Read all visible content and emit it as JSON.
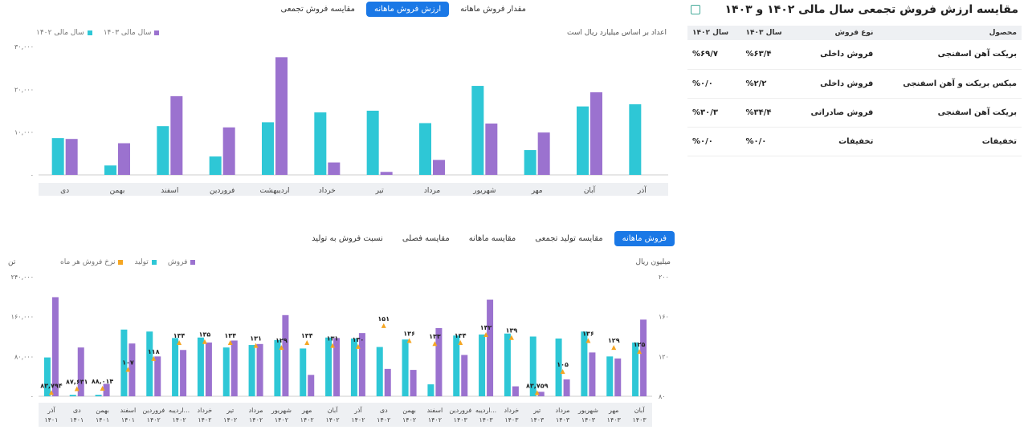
{
  "top": {
    "tabs": [
      {
        "label": "مقدار فروش ماهانه",
        "active": false
      },
      {
        "label": "ارزش فروش ماهانه",
        "active": true
      },
      {
        "label": "مقایسه فروش تجمعی",
        "active": false
      }
    ],
    "unit_note": "اعداد بر اساس میلیارد ریال است"
  },
  "bottom": {
    "tabs": [
      {
        "label": "فروش ماهانه",
        "active": true
      },
      {
        "label": "مقایسه تولید تجمعی",
        "active": false
      },
      {
        "label": "مقایسه ماهانه",
        "active": false
      },
      {
        "label": "مقایسه فصلی",
        "active": false
      },
      {
        "label": "نسبت فروش به تولید",
        "active": false
      }
    ],
    "left_unit": "تن",
    "right_unit": "میلیون ریال"
  },
  "panel": {
    "title": "مقایسه ارزش فروش تجمعی سال مالی ۱۴۰۲ و ۱۴۰۳",
    "headers": [
      "محصول",
      "نوع فروش",
      "سال ۱۴۰۳",
      "سال ۱۴۰۲"
    ],
    "rows": [
      {
        "product": "بریکت آهن اسفنجی",
        "type": "فروش داخلی",
        "y1403": "%۶۳/۴",
        "y1402": "%۶۹/۷"
      },
      {
        "product": "میکس بریکت و آهن اسفنجی",
        "type": "فروش داخلی",
        "y1403": "%۲/۲",
        "y1402": "%۰/۰"
      },
      {
        "product": "بریکت آهن اسفنجی",
        "type": "فروش صادراتی",
        "y1403": "%۳۴/۴",
        "y1402": "%۳۰/۳"
      },
      {
        "product": "تخفیفات",
        "type": "تخفیفات",
        "y1403": "%۰/۰",
        "y1402": "%۰/۰"
      }
    ]
  },
  "chart_data": [
    {
      "type": "bar",
      "categories": [
        "آذر",
        "آبان",
        "مهر",
        "شهریور",
        "مرداد",
        "تیر",
        "خرداد",
        "اردیبهشت",
        "فروردین",
        "اسفند",
        "بهمن",
        "دی"
      ],
      "series": [
        {
          "name": "سال مالی ۱۴۰۳",
          "color": "#9b72cf",
          "values": [
            null,
            19300,
            9900,
            12000,
            3500,
            700,
            2900,
            27500,
            11100,
            18400,
            7400,
            8400
          ]
        },
        {
          "name": "سال مالی ۱۴۰۲",
          "color": "#2ec7d6",
          "values": [
            16500,
            16000,
            5800,
            20800,
            12100,
            15000,
            14600,
            12300,
            4300,
            11400,
            2200,
            8600
          ]
        }
      ],
      "ylim": [
        0,
        30000
      ],
      "yticks": [
        "۳۰,۰۰۰",
        "۲۰,۰۰۰",
        "۱۰,۰۰۰",
        "۰"
      ],
      "ytick_values": [
        30000,
        20000,
        10000,
        0
      ],
      "legend_position": "top-left",
      "grid": false
    },
    {
      "type": "bar",
      "categories": [
        {
          "month": "آذر",
          "year": "۱۴۰۱"
        },
        {
          "month": "دی",
          "year": "۱۴۰۱"
        },
        {
          "month": "بهمن",
          "year": "۱۴۰۱"
        },
        {
          "month": "اسفند",
          "year": "۱۴۰۱"
        },
        {
          "month": "فروردین",
          "year": "۱۴۰۲"
        },
        {
          "month": "اردیبه...",
          "year": "۱۴۰۲"
        },
        {
          "month": "خرداد",
          "year": "۱۴۰۲"
        },
        {
          "month": "تیر",
          "year": "۱۴۰۲"
        },
        {
          "month": "مرداد",
          "year": "۱۴۰۲"
        },
        {
          "month": "شهریور",
          "year": "۱۴۰۲"
        },
        {
          "month": "مهر",
          "year": "۱۴۰۲"
        },
        {
          "month": "آبان",
          "year": "۱۴۰۲"
        },
        {
          "month": "آذر",
          "year": "۱۴۰۲"
        },
        {
          "month": "دی",
          "year": "۱۴۰۲"
        },
        {
          "month": "بهمن",
          "year": "۱۴۰۲"
        },
        {
          "month": "اسفند",
          "year": "۱۴۰۲"
        },
        {
          "month": "فروردین",
          "year": "۱۴۰۳"
        },
        {
          "month": "اردیبه...",
          "year": "۱۴۰۳"
        },
        {
          "month": "خرداد",
          "year": "۱۴۰۳"
        },
        {
          "month": "تیر",
          "year": "۱۴۰۳"
        },
        {
          "month": "مرداد",
          "year": "۱۴۰۳"
        },
        {
          "month": "شهریور",
          "year": "۱۴۰۳"
        },
        {
          "month": "مهر",
          "year": "۱۴۰۳"
        },
        {
          "month": "آبان",
          "year": "۱۴۰۳"
        }
      ],
      "series": [
        {
          "name": "فروش",
          "color": "#9b72cf",
          "axis": "left",
          "values": [
            199000,
            98000,
            25000,
            106000,
            80000,
            93000,
            108000,
            112000,
            105000,
            163000,
            43000,
            117000,
            127000,
            55000,
            53000,
            137000,
            83000,
            194000,
            20000,
            9000,
            34000,
            88000,
            76000,
            154000
          ]
        },
        {
          "name": "تولید",
          "color": "#2ec7d6",
          "axis": "left",
          "values": [
            78000,
            3000,
            3000,
            134000,
            130000,
            117000,
            118000,
            98000,
            103000,
            113000,
            96000,
            118000,
            116000,
            99000,
            114000,
            24000,
            122000,
            124000,
            126000,
            120000,
            116000,
            130000,
            80000,
            108000
          ]
        },
        {
          "name": "نرخ فروش هر ماه",
          "color": "#f5a623",
          "axis": "right",
          "values": [
            83.794,
            87.631,
            88.014,
            107,
            118,
            134,
            135,
            134,
            131,
            129,
            134,
            131,
            130,
            151,
            136,
            133,
            134,
            142,
            139,
            83.759,
            105,
            136,
            129,
            125
          ]
        }
      ],
      "rate_labels": [
        "۸۳,۷۹۴",
        "۸۷,۶۳۱",
        "۸۸,۰۱۴",
        "۱۰۷",
        "۱۱۸",
        "۱۳۴",
        "۱۳۵",
        "۱۳۴",
        "۱۳۱",
        "۱۲۹",
        "۱۳۴",
        "۱۳۱",
        "۱۳۰",
        "۱۵۱",
        "۱۳۶",
        "۱۳۳",
        "۱۳۴",
        "۱۴۲",
        "۱۳۹",
        "۸۳,۷۵۹",
        "۱۰۵",
        "۱۳۶",
        "۱۲۹",
        "۱۲۵"
      ],
      "ylim_left": [
        0,
        240000
      ],
      "ylim_right": [
        80,
        200
      ],
      "yticks_left": [
        "۲۴۰,۰۰۰",
        "۱۶۰,۰۰۰",
        "۸۰,۰۰۰",
        "۰"
      ],
      "ytick_left_values": [
        240000,
        160000,
        80000,
        0
      ],
      "yticks_right": [
        "۲۰۰",
        "۱۶۰",
        "۱۲۰",
        "۸۰"
      ],
      "ytick_right_values": [
        200,
        160,
        120,
        80
      ],
      "legend_position": "top-left",
      "grid": false
    }
  ]
}
